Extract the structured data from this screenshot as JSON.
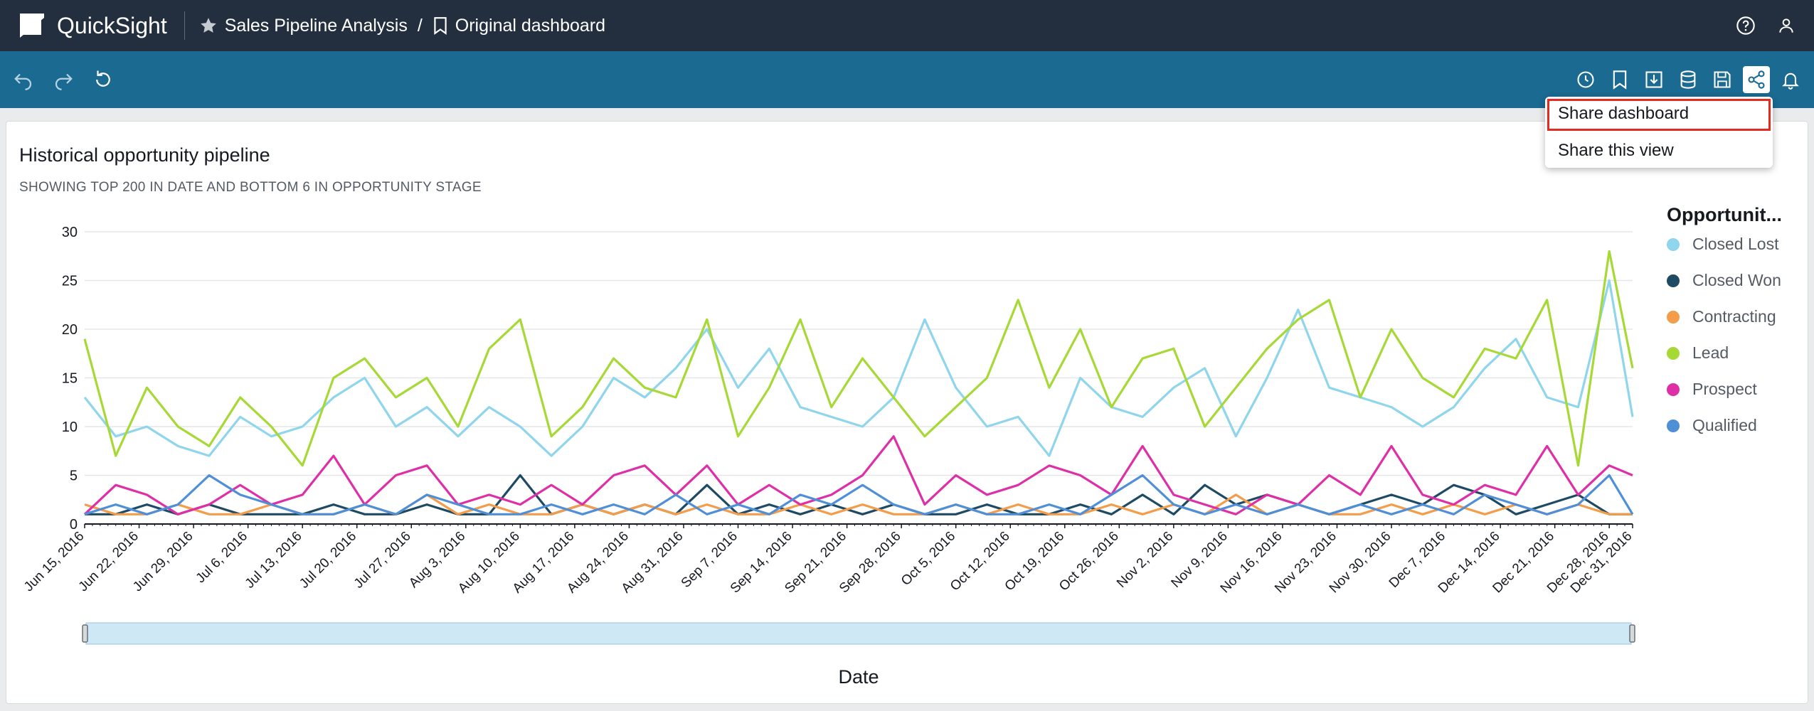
{
  "app": {
    "name": "QuickSight"
  },
  "breadcrumb": {
    "analysis": "Sales Pipeline Analysis",
    "separator": "/",
    "dashboard": "Original dashboard"
  },
  "icons": {
    "top_right": [
      "help-icon",
      "user-icon"
    ],
    "toolbar_left": [
      "undo-icon",
      "redo-icon",
      "reset-icon"
    ],
    "toolbar_right": [
      "history-icon",
      "bookmark-icon",
      "export-icon",
      "dataset-icon",
      "save-icon",
      "share-icon",
      "bell-icon"
    ]
  },
  "colors": {
    "topbar": "#232f3e",
    "toolbar": "#1b6a92",
    "highlight": "#e52b1f"
  },
  "visual": {
    "title": "Historical opportunity pipeline",
    "subtitle": "SHOWING TOP 200 IN DATE AND BOTTOM 6 IN OPPORTUNITY STAGE"
  },
  "legend": {
    "title": "Opportunit...",
    "items": [
      {
        "label": "Closed Lost",
        "color": "#8fd5ec"
      },
      {
        "label": "Closed Won",
        "color": "#1e4a63"
      },
      {
        "label": "Contracting",
        "color": "#f39c4a"
      },
      {
        "label": "Lead",
        "color": "#a6d935"
      },
      {
        "label": "Prospect",
        "color": "#df2fa7"
      },
      {
        "label": "Qualified",
        "color": "#4f8fd8"
      }
    ]
  },
  "share_menu": {
    "items": [
      "Share dashboard",
      "Share this view"
    ],
    "highlighted": "Share dashboard"
  },
  "chart_data": {
    "type": "line",
    "title": "Historical opportunity pipeline",
    "xlabel": "Date",
    "ylabel": "",
    "ylim": [
      0,
      30
    ],
    "yticks": [
      0,
      5,
      10,
      15,
      20,
      25,
      30
    ],
    "xlim": [
      "2016-06-15",
      "2016-12-31"
    ],
    "grid": true,
    "legend_placement": "right",
    "x_tick_labels": [
      "Jun 15, 2016",
      "Jun 22, 2016",
      "Jun 29, 2016",
      "Jul 6, 2016",
      "Jul 13, 2016",
      "Jul 20, 2016",
      "Jul 27, 2016",
      "Aug 3, 2016",
      "Aug 10, 2016",
      "Aug 17, 2016",
      "Aug 24, 2016",
      "Aug 31, 2016",
      "Sep 7, 2016",
      "Sep 14, 2016",
      "Sep 21, 2016",
      "Sep 28, 2016",
      "Oct 5, 2016",
      "Oct 12, 2016",
      "Oct 19, 2016",
      "Oct 26, 2016",
      "Nov 2, 2016",
      "Nov 9, 2016",
      "Nov 16, 2016",
      "Nov 23, 2016",
      "Nov 30, 2016",
      "Dec 7, 2016",
      "Dec 14, 2016",
      "Dec 21, 2016",
      "Dec 28, 2016",
      "Dec 31, 2016"
    ],
    "x": [
      "2016-06-15",
      "2016-06-19",
      "2016-06-23",
      "2016-06-27",
      "2016-07-01",
      "2016-07-05",
      "2016-07-09",
      "2016-07-13",
      "2016-07-17",
      "2016-07-21",
      "2016-07-25",
      "2016-07-29",
      "2016-08-02",
      "2016-08-06",
      "2016-08-10",
      "2016-08-14",
      "2016-08-18",
      "2016-08-22",
      "2016-08-26",
      "2016-08-30",
      "2016-09-03",
      "2016-09-07",
      "2016-09-11",
      "2016-09-15",
      "2016-09-19",
      "2016-09-23",
      "2016-09-27",
      "2016-10-01",
      "2016-10-05",
      "2016-10-09",
      "2016-10-13",
      "2016-10-17",
      "2016-10-21",
      "2016-10-25",
      "2016-10-29",
      "2016-11-02",
      "2016-11-06",
      "2016-11-10",
      "2016-11-14",
      "2016-11-18",
      "2016-11-22",
      "2016-11-26",
      "2016-11-30",
      "2016-12-04",
      "2016-12-08",
      "2016-12-12",
      "2016-12-16",
      "2016-12-20",
      "2016-12-24",
      "2016-12-28",
      "2016-12-31"
    ],
    "series": [
      {
        "name": "Closed Lost",
        "values": [
          13,
          9,
          10,
          8,
          7,
          11,
          9,
          10,
          13,
          15,
          10,
          12,
          9,
          12,
          10,
          7,
          10,
          15,
          13,
          16,
          20,
          14,
          18,
          12,
          11,
          10,
          13,
          21,
          14,
          10,
          11,
          7,
          15,
          12,
          11,
          14,
          16,
          9,
          15,
          22,
          14,
          13,
          12,
          10,
          12,
          16,
          19,
          13,
          12,
          25,
          11
        ]
      },
      {
        "name": "Closed Won",
        "values": [
          1,
          1,
          2,
          1,
          2,
          1,
          1,
          1,
          2,
          1,
          1,
          2,
          1,
          1,
          5,
          1,
          2,
          1,
          2,
          1,
          4,
          1,
          2,
          1,
          2,
          1,
          2,
          1,
          1,
          2,
          1,
          1,
          2,
          1,
          3,
          1,
          4,
          2,
          3,
          2,
          1,
          2,
          3,
          2,
          4,
          3,
          1,
          2,
          3,
          1,
          1
        ]
      },
      {
        "name": "Contracting",
        "values": [
          2,
          1,
          1,
          2,
          1,
          1,
          2,
          1,
          1,
          2,
          1,
          3,
          1,
          2,
          1,
          1,
          2,
          1,
          2,
          1,
          2,
          1,
          1,
          2,
          1,
          2,
          1,
          1,
          2,
          1,
          2,
          1,
          1,
          2,
          1,
          2,
          1,
          3,
          1,
          2,
          1,
          1,
          2,
          1,
          2,
          1,
          2,
          1,
          2,
          1,
          1
        ]
      },
      {
        "name": "Lead",
        "values": [
          19,
          7,
          14,
          10,
          8,
          13,
          10,
          6,
          15,
          17,
          13,
          15,
          10,
          18,
          21,
          9,
          12,
          17,
          14,
          13,
          21,
          9,
          14,
          21,
          12,
          17,
          13,
          9,
          12,
          15,
          23,
          14,
          20,
          12,
          17,
          18,
          10,
          14,
          18,
          21,
          23,
          13,
          20,
          15,
          13,
          18,
          17,
          23,
          6,
          28,
          16
        ]
      },
      {
        "name": "Prospect",
        "values": [
          1,
          4,
          3,
          1,
          2,
          4,
          2,
          3,
          7,
          2,
          5,
          6,
          2,
          3,
          2,
          4,
          2,
          5,
          6,
          3,
          6,
          2,
          4,
          2,
          3,
          5,
          9,
          2,
          5,
          3,
          4,
          6,
          5,
          3,
          8,
          3,
          2,
          1,
          3,
          2,
          5,
          3,
          8,
          3,
          2,
          4,
          3,
          8,
          3,
          6,
          5
        ]
      },
      {
        "name": "Qualified",
        "values": [
          1,
          2,
          1,
          2,
          5,
          3,
          2,
          1,
          1,
          2,
          1,
          3,
          2,
          1,
          1,
          2,
          1,
          2,
          1,
          3,
          1,
          2,
          1,
          3,
          2,
          4,
          2,
          1,
          2,
          1,
          1,
          2,
          1,
          3,
          5,
          2,
          1,
          2,
          1,
          2,
          1,
          2,
          1,
          2,
          1,
          3,
          2,
          1,
          2,
          5,
          1
        ]
      }
    ]
  }
}
